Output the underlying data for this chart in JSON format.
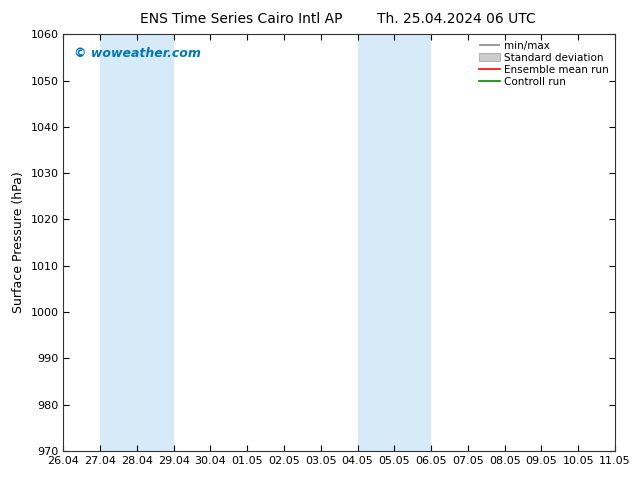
{
  "title_left": "ENS Time Series Cairo Intl AP",
  "title_right": "Th. 25.04.2024 06 UTC",
  "ylabel": "Surface Pressure (hPa)",
  "watermark": "© woweather.com",
  "ylim": [
    970,
    1060
  ],
  "yticks": [
    970,
    980,
    990,
    1000,
    1010,
    1020,
    1030,
    1040,
    1050,
    1060
  ],
  "x_labels": [
    "26.04",
    "27.04",
    "28.04",
    "29.04",
    "30.04",
    "01.05",
    "02.05",
    "03.05",
    "04.05",
    "05.05",
    "06.05",
    "07.05",
    "08.05",
    "09.05",
    "10.05",
    "11.05"
  ],
  "x_values": [
    0,
    1,
    2,
    3,
    4,
    5,
    6,
    7,
    8,
    9,
    10,
    11,
    12,
    13,
    14,
    15
  ],
  "shaded_bands": [
    {
      "xmin": 1,
      "xmax": 2
    },
    {
      "xmin": 2,
      "xmax": 3
    },
    {
      "xmin": 8,
      "xmax": 9
    },
    {
      "xmin": 9,
      "xmax": 10
    }
  ],
  "shade_color": "#d6eaf8",
  "background_color": "#ffffff",
  "plot_bg_color": "#ffffff",
  "legend_items": [
    {
      "label": "min/max",
      "color": "#aaaaaa",
      "style": "minmax"
    },
    {
      "label": "Standard deviation",
      "color": "#cccccc",
      "style": "stddev"
    },
    {
      "label": "Ensemble mean run",
      "color": "#ff0000",
      "style": "line"
    },
    {
      "label": "Controll run",
      "color": "#008800",
      "style": "line"
    }
  ],
  "watermark_color": "#0077bb",
  "title_fontsize": 10,
  "tick_fontsize": 8,
  "ylabel_fontsize": 9,
  "legend_fontsize": 7.5
}
